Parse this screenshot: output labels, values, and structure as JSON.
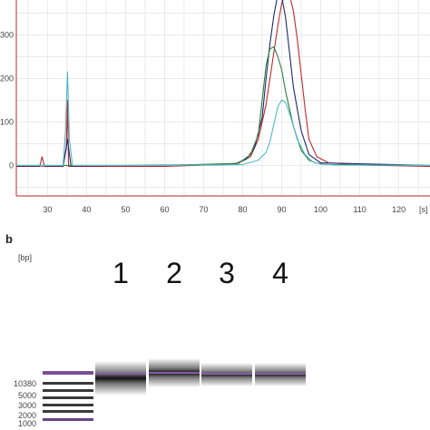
{
  "panel_b_label": "b",
  "chart_data": [
    {
      "type": "line",
      "x_unit": "[s]",
      "xlim": [
        22,
        128
      ],
      "ylim": [
        -70,
        380
      ],
      "xticks": [
        30,
        40,
        50,
        60,
        70,
        80,
        90,
        100,
        110,
        120
      ],
      "yticks": [
        0,
        100,
        200,
        300
      ],
      "grid": true,
      "series": [
        {
          "color": "#c0282c",
          "x": [
            22,
            28,
            28.6,
            29.2,
            34,
            34.8,
            35.1,
            35.4,
            36.2,
            60,
            78,
            82,
            84,
            86,
            88,
            89,
            90,
            91,
            92,
            93,
            94,
            95,
            96,
            97,
            99,
            102,
            110,
            128
          ],
          "y": [
            -2,
            -2,
            20,
            -2,
            -2,
            40,
            150,
            -2,
            -2,
            -2,
            3,
            20,
            60,
            140,
            260,
            320,
            372,
            395,
            392,
            355,
            290,
            210,
            130,
            60,
            20,
            6,
            1,
            -2
          ]
        },
        {
          "color": "#1f2a6a",
          "x": [
            22,
            34,
            35.1,
            36,
            78,
            81,
            83,
            85,
            86,
            87,
            88,
            89,
            90,
            91,
            92,
            93,
            95,
            97,
            100,
            128
          ],
          "y": [
            -1,
            -1,
            60,
            -1,
            2,
            15,
            40,
            110,
            200,
            280,
            345,
            392,
            388,
            340,
            260,
            180,
            80,
            25,
            6,
            0
          ]
        },
        {
          "color": "#2a7f3a",
          "x": [
            22,
            35,
            36,
            60,
            79,
            82,
            84,
            85,
            86,
            87,
            88,
            89,
            90,
            91,
            93,
            95,
            97,
            99,
            102,
            128
          ],
          "y": [
            0,
            0,
            0,
            0,
            5,
            25,
            70,
            150,
            230,
            268,
            272,
            250,
            220,
            170,
            90,
            35,
            12,
            5,
            2,
            0
          ]
        },
        {
          "color": "#4fb7c7",
          "x": [
            22,
            34,
            34.6,
            35.1,
            35.6,
            36.4,
            60,
            80,
            84,
            86,
            87,
            88,
            89,
            90,
            91,
            92,
            93,
            94,
            96,
            98,
            100,
            104,
            128
          ],
          "y": [
            0,
            0,
            80,
            215,
            60,
            0,
            0,
            2,
            12,
            30,
            55,
            95,
            135,
            150,
            145,
            120,
            90,
            60,
            25,
            8,
            3,
            1,
            0
          ]
        }
      ]
    },
    {
      "type": "gel",
      "y_unit": "[bp]",
      "ladder_labels": [
        "10380",
        "5000",
        "3000",
        "2000",
        "1000"
      ],
      "lanes": [
        "1",
        "2",
        "3",
        "4"
      ]
    }
  ]
}
